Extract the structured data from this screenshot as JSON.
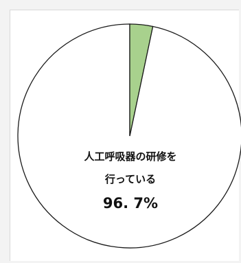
{
  "chart_data": {
    "type": "pie",
    "slices": [
      {
        "label": "人工呼吸器の研修を行っている",
        "value": 96.7,
        "value_label": "96.7%",
        "color": "#ffffff"
      },
      {
        "label": "",
        "value": 3.3,
        "value_label": "",
        "color": "#a8d18d"
      }
    ],
    "label_lines": [
      "人工呼吸器の研修を",
      "行っている"
    ],
    "value_text": "96. 7%",
    "legend": "none"
  }
}
